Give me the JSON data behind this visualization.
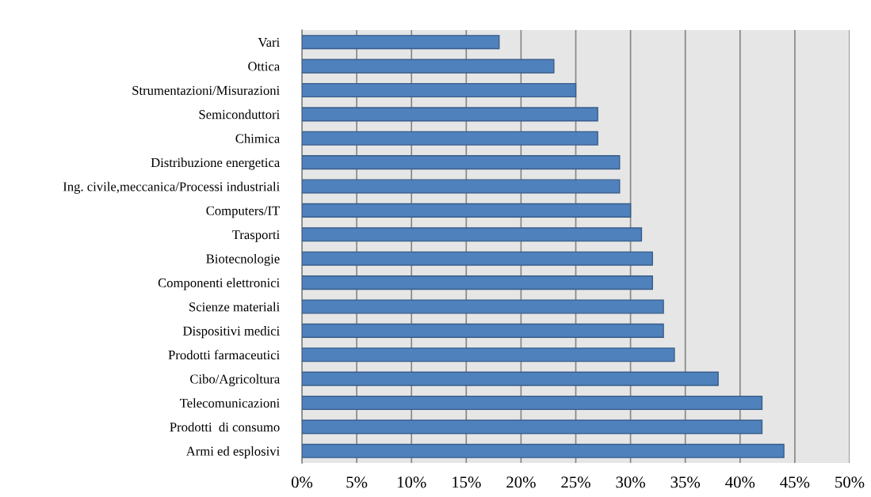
{
  "chart_data": {
    "type": "bar",
    "orientation": "horizontal",
    "categories": [
      "Vari",
      "Ottica",
      "Strumentazioni/Misurazioni",
      "Semiconduttori",
      "Chimica",
      "Distribuzione energetica",
      "Ing. civile,meccanica/Processi industriali",
      "Computers/IT",
      "Trasporti",
      "Biotecnologie",
      "Componenti elettronici",
      "Scienze materiali",
      "Dispositivi medici",
      "Prodotti farmaceutici",
      "Cibo/Agricoltura",
      "Telecomunicazioni",
      "Prodotti  di consumo",
      "Armi ed esplosivi"
    ],
    "values": [
      18,
      23,
      25,
      27,
      27,
      29,
      29,
      30,
      31,
      32,
      32,
      33,
      33,
      34,
      38,
      42,
      42,
      44
    ],
    "color": "#4f81bd",
    "xlim": [
      0,
      50
    ],
    "xticks": [
      {
        "value": 0,
        "label": "0%"
      },
      {
        "value": 5,
        "label": "5%"
      },
      {
        "value": 10,
        "label": "10%"
      },
      {
        "value": 15,
        "label": "15%"
      },
      {
        "value": 20,
        "label": "20%"
      },
      {
        "value": 25,
        "label": "25%"
      },
      {
        "value": 30,
        "label": "30%"
      },
      {
        "value": 35,
        "label": "35%"
      },
      {
        "value": 40,
        "label": "40%"
      },
      {
        "value": 45,
        "label": "45%"
      },
      {
        "value": 50,
        "label": "50%"
      }
    ],
    "grid": "x",
    "legend": false
  }
}
